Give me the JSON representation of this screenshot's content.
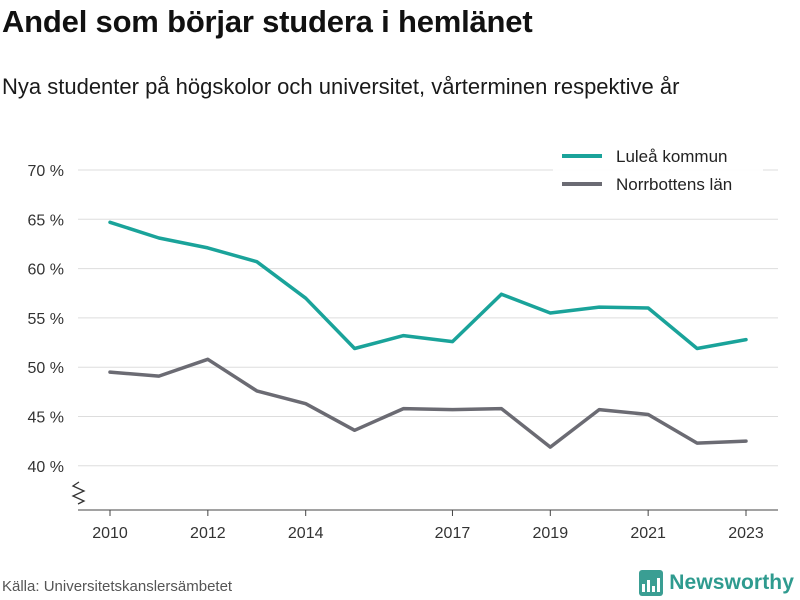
{
  "title": "Andel som börjar studera i hemlänet",
  "subtitle": "Nya studenter på högskolor och universitet, vårterminen respektive år",
  "source": "Källa: Universitetskanslersämbetet",
  "brand": {
    "name": "Newsworthy",
    "icon": "bar-chart-logo-icon",
    "color": "#2f9b8f"
  },
  "chart_data": {
    "type": "line",
    "x": [
      2010,
      2011,
      2012,
      2013,
      2014,
      2015,
      2016,
      2017,
      2018,
      2019,
      2020,
      2021,
      2022,
      2023
    ],
    "x_ticks": [
      2010,
      2012,
      2014,
      2017,
      2019,
      2021,
      2023
    ],
    "x_tick_labels": [
      "2010",
      "2012",
      "2014",
      "2017",
      "2019",
      "2021",
      "2023"
    ],
    "y_ticks": [
      40,
      45,
      50,
      55,
      60,
      65,
      70
    ],
    "y_tick_labels": [
      "40 %",
      "45 %",
      "50 %",
      "55 %",
      "60 %",
      "65 %",
      "70 %"
    ],
    "ylim": [
      35,
      70
    ],
    "axis_break": true,
    "grid": true,
    "legend_position": "top-right",
    "series": [
      {
        "name": "Luleå kommun",
        "color": "#1aa39a",
        "values": [
          64.7,
          63.1,
          62.1,
          60.7,
          57.0,
          51.9,
          53.2,
          52.6,
          57.4,
          55.5,
          56.1,
          56.0,
          51.9,
          52.8
        ]
      },
      {
        "name": "Norrbottens län",
        "color": "#6b6b73",
        "values": [
          49.5,
          49.1,
          50.8,
          47.6,
          46.3,
          43.6,
          45.8,
          45.7,
          45.8,
          41.9,
          45.7,
          45.2,
          42.3,
          42.5
        ]
      }
    ]
  }
}
